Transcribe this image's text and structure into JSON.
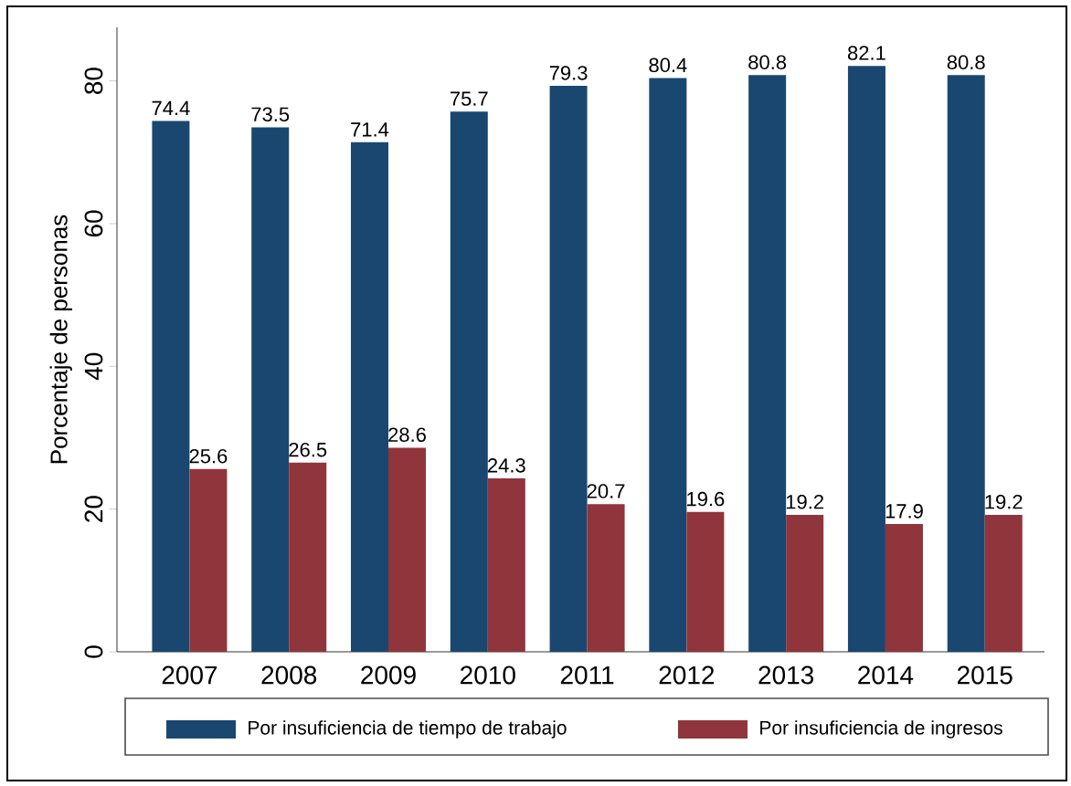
{
  "chart_data": {
    "type": "bar",
    "ylabel": "Porcentaje de personas",
    "categories": [
      "2007",
      "2008",
      "2009",
      "2010",
      "2011",
      "2012",
      "2013",
      "2014",
      "2015"
    ],
    "series": [
      {
        "name": "Por insuficiencia de tiempo de trabajo",
        "color": "#1a476f",
        "values": [
          74.4,
          73.5,
          71.4,
          75.7,
          79.3,
          80.4,
          80.8,
          82.1,
          80.8
        ]
      },
      {
        "name": "Por insuficiencia de ingresos",
        "color": "#90353b",
        "values": [
          25.6,
          26.5,
          28.6,
          24.3,
          20.7,
          19.6,
          19.2,
          17.9,
          19.2
        ]
      }
    ],
    "ylim": [
      0,
      87.5
    ],
    "yticks": [
      0,
      20,
      40,
      60,
      80
    ],
    "data_labels": true,
    "legend": "bottom",
    "grid": false
  }
}
